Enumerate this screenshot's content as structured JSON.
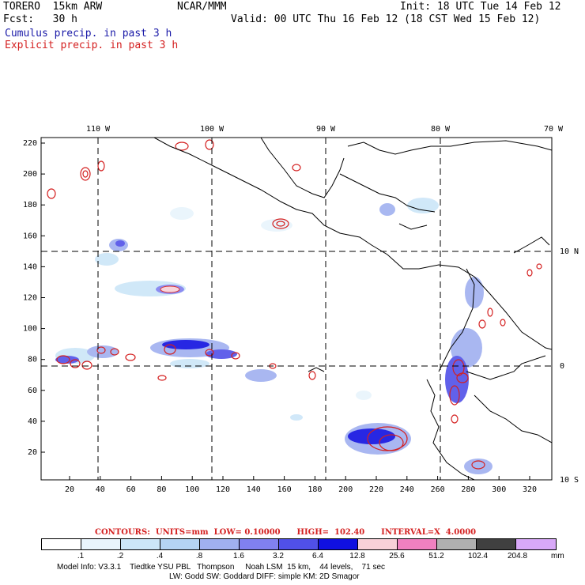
{
  "header": {
    "model": "TORERO  15km ARW",
    "center": "NCAR/MMM",
    "init": "Init: 18 UTC Tue 14 Feb 12",
    "fcst": "Fcst:   30 h",
    "valid": "Valid: 00 UTC Thu 16 Feb 12 (18 CST Wed 15 Feb 12)",
    "line_cumulus": "Cumulus precip. in past 3 h",
    "line_explicit": "Explicit precip. in past 3 h"
  },
  "axes": {
    "top_lon_labels": [
      "110 W",
      "100 W",
      "90 W",
      "80 W",
      "70 W"
    ],
    "right_lat_labels": [
      "10 N",
      "0",
      "10 S"
    ],
    "left_grid_labels": [
      "220",
      "200",
      "180",
      "160",
      "140",
      "120",
      "100",
      "80",
      "60",
      "40",
      "20"
    ],
    "bottom_grid_labels": [
      "20",
      "40",
      "60",
      "80",
      "100",
      "120",
      "140",
      "160",
      "180",
      "200",
      "220",
      "240",
      "260",
      "280",
      "300",
      "320"
    ]
  },
  "contours_line": "CONTOURS:  UNITS=mm  LOW= 0.10000      HIGH=  102.40      INTERVAL=X  4.0000",
  "colorbar": {
    "colors": [
      "#ffffff",
      "#e8f4fc",
      "#cce6f8",
      "#b4d4f4",
      "#a0b0f0",
      "#8080f0",
      "#5050e8",
      "#1010e0",
      "#f8d0d8",
      "#f080c0",
      "#b0b0b0",
      "#404040",
      "#d8a8f8"
    ],
    "labels": [
      ".1",
      ".2",
      ".4",
      ".8",
      "1.6",
      "3.2",
      "6.4",
      "12.8",
      "25.6",
      "51.2",
      "102.4",
      "204.8"
    ],
    "units": "mm"
  },
  "footer": {
    "line1": "Model Info: V3.3.1    Tiedtke YSU PBL   Thompson     Noah LSM  15 km,    44 levels,    71 sec",
    "line2": "LW: Godd SW: Goddard DIFF: simple KM: 2D Smagor"
  }
}
